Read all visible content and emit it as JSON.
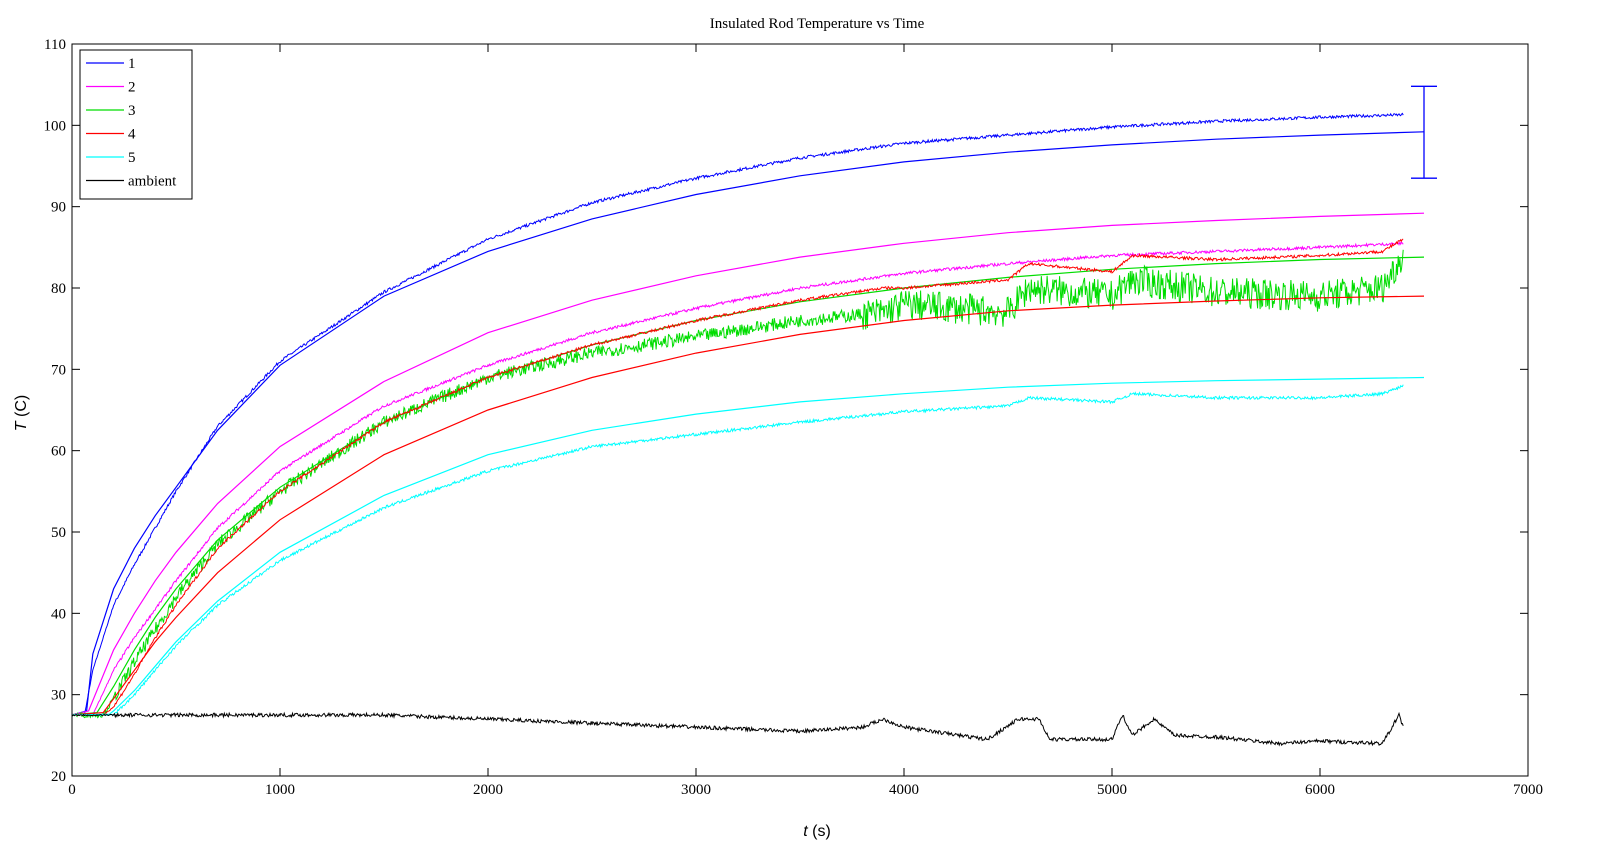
{
  "chart_data": {
    "type": "line",
    "title": "Insulated Rod Temperature vs Time",
    "xlabel_var": "t",
    "xlabel_unit": " (s)",
    "ylabel_var": "T",
    "ylabel_unit": " (C)",
    "xlim": [
      0,
      7000
    ],
    "ylim": [
      20,
      110
    ],
    "xticks": [
      0,
      1000,
      2000,
      3000,
      4000,
      5000,
      6000,
      7000
    ],
    "yticks": [
      20,
      30,
      40,
      50,
      60,
      70,
      80,
      90,
      100,
      110
    ],
    "grid": false,
    "legend_position": "top-left",
    "legend": [
      "1",
      "2",
      "3",
      "4",
      "5",
      "ambient"
    ],
    "series": [
      {
        "name": "1",
        "kind": "measured",
        "color": "#0000ff",
        "x": [
          0,
          60,
          100,
          200,
          300,
          400,
          500,
          700,
          1000,
          1500,
          2000,
          2500,
          3000,
          3500,
          4000,
          4500,
          5000,
          5500,
          6000,
          6400
        ],
        "y": [
          27.5,
          27.5,
          33,
          41,
          46,
          50.5,
          55,
          63,
          71,
          79.5,
          86,
          90.5,
          93.5,
          96,
          97.8,
          98.8,
          99.8,
          100.5,
          101,
          101.3
        ]
      },
      {
        "name": "1",
        "kind": "model",
        "color": "#0000ff",
        "x": [
          0,
          70,
          100,
          200,
          300,
          400,
          500,
          700,
          1000,
          1500,
          2000,
          2500,
          3000,
          3500,
          4000,
          4500,
          5000,
          5500,
          6000,
          6500
        ],
        "y": [
          27.5,
          28,
          35,
          43,
          48,
          52,
          55.5,
          62.5,
          70.5,
          79,
          84.5,
          88.5,
          91.5,
          93.8,
          95.5,
          96.7,
          97.6,
          98.3,
          98.8,
          99.2
        ]
      },
      {
        "name": "2",
        "kind": "measured",
        "color": "#ff00ff",
        "x": [
          0,
          100,
          200,
          300,
          400,
          500,
          700,
          1000,
          1500,
          2000,
          2500,
          3000,
          3500,
          4000,
          4500,
          5000,
          5500,
          6000,
          6400
        ],
        "y": [
          27.5,
          27.5,
          33,
          37,
          40.5,
          44,
          50.5,
          57.5,
          65.5,
          70.5,
          74.5,
          77.5,
          80,
          81.8,
          83,
          84,
          84.5,
          85,
          85.5
        ]
      },
      {
        "name": "2",
        "kind": "model",
        "color": "#ff00ff",
        "x": [
          0,
          80,
          200,
          300,
          400,
          500,
          700,
          1000,
          1500,
          2000,
          2500,
          3000,
          3500,
          4000,
          4500,
          5000,
          5500,
          6000,
          6500
        ],
        "y": [
          27.5,
          28,
          35.5,
          40,
          44,
          47.5,
          53.5,
          60.5,
          68.5,
          74.5,
          78.5,
          81.5,
          83.8,
          85.5,
          86.8,
          87.7,
          88.3,
          88.8,
          89.2
        ]
      },
      {
        "name": "3",
        "kind": "measured",
        "color": "#00dd00",
        "x": [
          0,
          150,
          200,
          300,
          400,
          500,
          700,
          1000,
          1500,
          2000,
          2500,
          3000,
          3500,
          3900,
          4000,
          4500,
          4600,
          5000,
          5100,
          5500,
          6000,
          6300,
          6400
        ],
        "y": [
          27.5,
          27.5,
          29.5,
          34,
          38,
          42,
          48.5,
          55,
          63.5,
          69,
          72,
          74,
          76,
          77,
          78,
          77,
          80,
          79,
          81,
          79.5,
          79,
          80,
          84
        ]
      },
      {
        "name": "3",
        "kind": "model",
        "color": "#00dd00",
        "x": [
          0,
          120,
          200,
          300,
          400,
          500,
          700,
          1000,
          1500,
          2000,
          2500,
          3000,
          3500,
          4000,
          4500,
          5000,
          5500,
          6000,
          6500
        ],
        "y": [
          27.5,
          27.8,
          31,
          35.5,
          39.5,
          43,
          49,
          55.5,
          63.5,
          69,
          73,
          76,
          78.3,
          80,
          81.3,
          82.3,
          83,
          83.5,
          83.8
        ]
      },
      {
        "name": "4",
        "kind": "measured",
        "color": "#ff0000",
        "x": [
          0,
          150,
          200,
          300,
          400,
          500,
          700,
          1000,
          1500,
          2000,
          2500,
          3000,
          3500,
          3900,
          4000,
          4500,
          4600,
          5000,
          5100,
          5500,
          6000,
          6300,
          6400
        ],
        "y": [
          27.5,
          27.5,
          28.5,
          32.5,
          37,
          41,
          48,
          55,
          63.5,
          69,
          73,
          76,
          78.5,
          80,
          80,
          81,
          83,
          82,
          84,
          83.5,
          84,
          84.5,
          86
        ]
      },
      {
        "name": "4",
        "kind": "model",
        "color": "#ff0000",
        "x": [
          0,
          150,
          200,
          300,
          400,
          500,
          700,
          1000,
          1500,
          2000,
          2500,
          3000,
          3500,
          4000,
          4500,
          5000,
          5500,
          6000,
          6500
        ],
        "y": [
          27.5,
          27.8,
          29.5,
          33,
          36.5,
          39.5,
          45,
          51.5,
          59.5,
          65,
          69,
          72,
          74.3,
          76,
          77.2,
          77.9,
          78.4,
          78.8,
          79
        ]
      },
      {
        "name": "5",
        "kind": "measured",
        "color": "#00ffff",
        "x": [
          0,
          200,
          300,
          400,
          500,
          700,
          1000,
          1500,
          2000,
          2500,
          3000,
          3500,
          4000,
          4500,
          4600,
          5000,
          5100,
          5500,
          6000,
          6300,
          6400
        ],
        "y": [
          27.5,
          27.5,
          30,
          33,
          36,
          41,
          46.5,
          53,
          57.5,
          60.5,
          62,
          63.5,
          64.8,
          65.5,
          66.5,
          66,
          67,
          66.5,
          66.5,
          67,
          68
        ]
      },
      {
        "name": "5",
        "kind": "model",
        "color": "#00ffff",
        "x": [
          0,
          180,
          200,
          300,
          400,
          500,
          700,
          1000,
          1500,
          2000,
          2500,
          3000,
          3500,
          4000,
          4500,
          5000,
          5500,
          6000,
          6500
        ],
        "y": [
          27.5,
          27.6,
          28,
          30.5,
          33.5,
          36.5,
          41.5,
          47.5,
          54.5,
          59.5,
          62.5,
          64.5,
          66,
          67,
          67.8,
          68.3,
          68.6,
          68.8,
          69
        ]
      },
      {
        "name": "ambient",
        "kind": "measured",
        "color": "#000000",
        "x": [
          0,
          500,
          1000,
          1500,
          2000,
          2500,
          3000,
          3500,
          3800,
          3900,
          4000,
          4400,
          4550,
          4650,
          4700,
          5000,
          5050,
          5100,
          5200,
          5300,
          5500,
          5800,
          6000,
          6300,
          6380,
          6400
        ],
        "y": [
          27.5,
          27.5,
          27.5,
          27.5,
          27,
          26.5,
          26,
          25.5,
          26,
          27,
          26,
          24.5,
          27,
          27,
          24.5,
          24.5,
          27.5,
          25,
          27,
          25,
          24.8,
          24,
          24.3,
          24,
          27.5,
          26
        ]
      }
    ],
    "error_bar": {
      "x": 6500,
      "y": 99.2,
      "low": 93.5,
      "high": 104.8,
      "color": "#0000ff"
    }
  }
}
